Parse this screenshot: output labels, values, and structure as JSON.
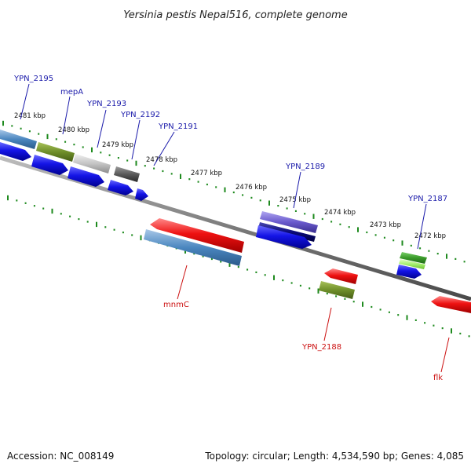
{
  "title": "Yersinia pestis Nepal516, complete genome",
  "footer": {
    "accession": "Accession: NC_008149",
    "summary": "Topology: circular; Length: 4,534,590 bp; Genes: 4,085"
  },
  "ruler_labels": [
    "2481 kbp",
    "2480 kbp",
    "2479 kbp",
    "2478 kbp",
    "2477 kbp",
    "2476 kbp",
    "2475 kbp",
    "2474 kbp",
    "2473 kbp",
    "2472 kbp"
  ],
  "forward_gene_labels": [
    "YPN_2195",
    "mepA",
    "YPN_2193",
    "YPN_2192",
    "YPN_2191",
    "YPN_2189",
    "YPN_2187"
  ],
  "reverse_gene_labels": [
    "mnmC",
    "YPN_2188",
    "flk"
  ],
  "colors": {
    "backbone": "#7a7a7a",
    "tick": "#1e8a1e",
    "forward_label": "#1a1aaa",
    "reverse_label": "#cc1111",
    "cds_arrow": "#1414e6",
    "gene_red": "#ee1111",
    "gene_steelblue": "#4a86bf",
    "gene_olive": "#6f8f2a",
    "gene_silver": "#c4c4c4",
    "gene_darkgray": "#5a5a5a",
    "gene_slateblue": "#6a5acd",
    "gene_navy": "#0a0a7a",
    "gene_green": "#3a9a2a",
    "gene_lightgreen": "#a6f070"
  }
}
